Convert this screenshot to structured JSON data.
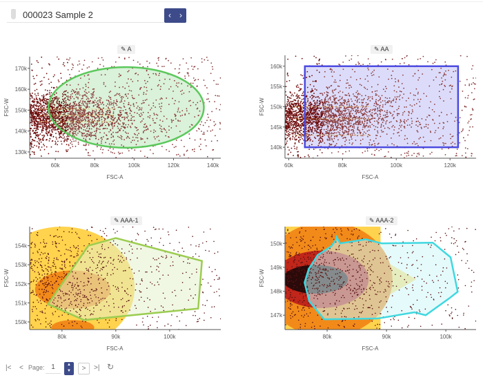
{
  "header": {
    "sample_title": "000023 Sample 2",
    "prev_label": "‹",
    "next_label": "›"
  },
  "pagination": {
    "first_label": "|<",
    "prev_label": "<",
    "page_label": "Page:",
    "page_value": "1",
    "spin_up": "▲",
    "spin_down": "▼",
    "next_label": ">",
    "last_label": ">|",
    "refresh_label": "↻"
  },
  "colors": {
    "accent": "#3d4b8a",
    "event_dot": "#7a1a1a"
  },
  "chart_data": [
    {
      "type": "scatter",
      "gate_name": "A",
      "xlabel": "FSC-A",
      "ylabel": "FSC-W",
      "xlim": [
        47,
        144
      ],
      "ylim": [
        127,
        175.6
      ],
      "xticks": [
        "60k",
        "80k",
        "100k",
        "120k",
        "140k"
      ],
      "xtick_values": [
        60,
        80,
        100,
        120,
        140
      ],
      "yticks": [
        "130k",
        "140k",
        "150k",
        "160k",
        "170k"
      ],
      "ytick_values": [
        130,
        140,
        150,
        160,
        170
      ],
      "gate": {
        "shape": "ellipse",
        "center": [
          96,
          151.3
        ],
        "radii": [
          39.4,
          19.3
        ],
        "color": "#5cc85c",
        "fill": "#d9f2d9"
      }
    },
    {
      "type": "scatter",
      "gate_name": "AA",
      "xlabel": "FSC-A",
      "ylabel": "FSC-W",
      "xlim": [
        58.6,
        129.7
      ],
      "ylim": [
        137.3,
        162.7
      ],
      "xticks": [
        "60k",
        "80k",
        "100k",
        "120k"
      ],
      "xtick_values": [
        60,
        80,
        100,
        120
      ],
      "yticks": [
        "140k",
        "145k",
        "150k",
        "155k",
        "160k"
      ],
      "ytick_values": [
        140,
        145,
        150,
        155,
        160
      ],
      "gate": {
        "shape": "rectangle",
        "x": [
          66,
          123
        ],
        "y": [
          140,
          160
        ],
        "color": "#4a4ae0",
        "fill": "#dcdcfa"
      }
    },
    {
      "type": "scatter",
      "gate_name": "AAA-1",
      "xlabel": "FSC-A",
      "ylabel": "FSC-W",
      "xlim": [
        74,
        109.5
      ],
      "ylim": [
        149.6,
        155
      ],
      "xticks": [
        "80k",
        "90k",
        "100k"
      ],
      "xtick_values": [
        80,
        90,
        100
      ],
      "yticks": [
        "150k",
        "151k",
        "152k",
        "153k",
        "154k"
      ],
      "ytick_values": [
        150,
        151,
        152,
        153,
        154
      ],
      "gate": {
        "shape": "polygon",
        "points": [
          [
            77.4,
            150.93
          ],
          [
            84.9,
            154.0
          ],
          [
            90,
            154.4
          ],
          [
            106,
            153.2
          ],
          [
            105.3,
            150.7
          ],
          [
            84.1,
            150.1
          ]
        ],
        "color": "#9ccc50",
        "fill": "#e4f2cc"
      }
    },
    {
      "type": "scatter",
      "gate_name": "AAA-2",
      "xlabel": "FSC-A",
      "ylabel": "FSC-W",
      "xlim": [
        72.9,
        105.1
      ],
      "ylim": [
        146.4,
        150.7
      ],
      "xticks": [
        "80k",
        "90k",
        "100k"
      ],
      "xtick_values": [
        80,
        90,
        100
      ],
      "yticks": [
        "147k",
        "148k",
        "149k",
        "150k"
      ],
      "ytick_values": [
        147,
        148,
        149,
        150
      ],
      "gate": {
        "shape": "polygon",
        "points": [
          [
            81.6,
            150.26
          ],
          [
            82.2,
            150.0
          ],
          [
            86.5,
            150.17
          ],
          [
            89.2,
            150
          ],
          [
            97.8,
            150.03
          ],
          [
            100.8,
            149.42
          ],
          [
            102,
            147.98
          ],
          [
            100.5,
            147.69
          ],
          [
            96.6,
            147
          ],
          [
            94.7,
            147.12
          ],
          [
            88.5,
            146.86
          ],
          [
            79.5,
            146.83
          ],
          [
            77,
            147.58
          ],
          [
            76.2,
            148.36
          ],
          [
            76.9,
            148.93
          ],
          [
            78.4,
            149.51
          ],
          [
            80.7,
            149.88
          ],
          [
            81.5,
            150.14
          ]
        ],
        "color": "#3fd8e0",
        "fill": "#cff5f8"
      }
    }
  ]
}
